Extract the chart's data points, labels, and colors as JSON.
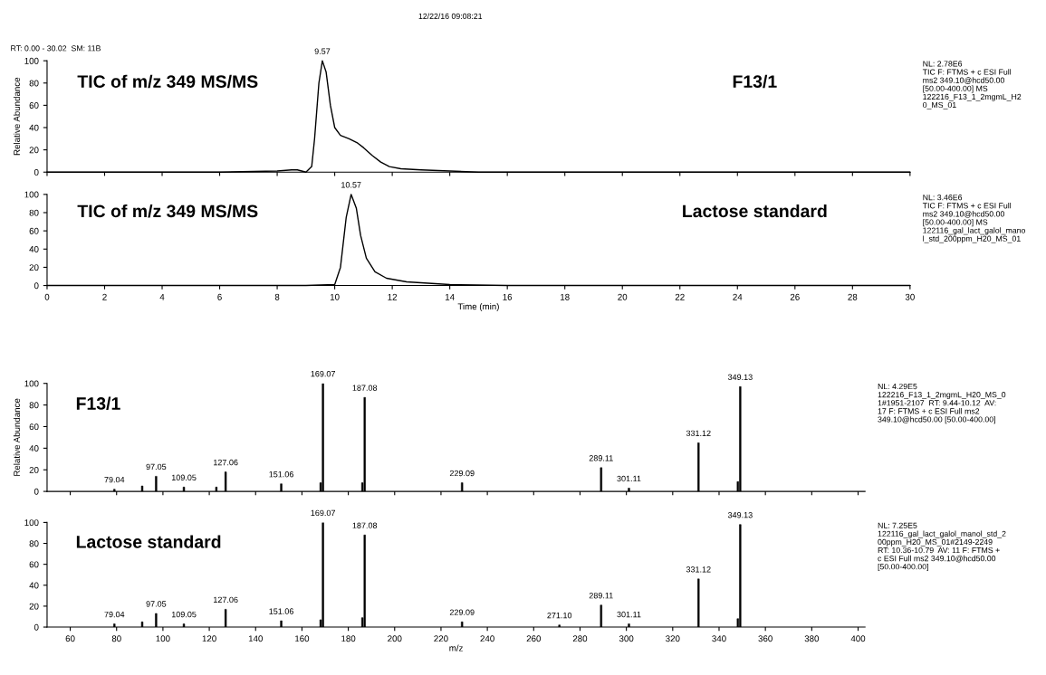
{
  "chart_data": [
    {
      "type": "line",
      "title": "TIC of m/z 349 MS/MS",
      "subtitle": "F13/1",
      "ylabel": "Relative Abundance",
      "tick_labels": "y",
      "xlim": [
        0,
        30
      ],
      "xticks": [
        0,
        2,
        4,
        6,
        8,
        10,
        12,
        14,
        16,
        18,
        20,
        22,
        24,
        26,
        28,
        30
      ],
      "ylim": [
        0,
        100
      ],
      "yticks": [
        0,
        20,
        40,
        60,
        80,
        100
      ],
      "grid": false,
      "legend": false,
      "series": [
        {
          "color": "#000000",
          "x": [
            0,
            2,
            4,
            6,
            8,
            8.5,
            8.7,
            9.0,
            9.2,
            9.3,
            9.45,
            9.57,
            9.7,
            9.85,
            10.0,
            10.2,
            10.5,
            10.8,
            11.0,
            11.3,
            11.6,
            11.9,
            12.3,
            13,
            14,
            15,
            20,
            25,
            30
          ],
          "values": [
            0,
            0,
            0,
            0,
            1,
            2,
            2,
            0,
            5,
            30,
            80,
            100,
            90,
            60,
            40,
            33,
            30,
            26,
            22,
            15,
            9,
            5,
            3,
            2,
            1,
            0,
            0,
            0,
            0
          ]
        }
      ],
      "annotations": [
        "NL: 2.78E6\nTIC F: FTMS + c ESI Full\nms2 349.10@hcd50.00\n[50.00-400.00] MS\n122216_F13_1_2mgmL_H2\n0_MS_01",
        "RT: 0.00 - 30.02  SM: 11B",
        "12/22/16 09:08:21",
        {
          "text": "9.57",
          "x": 9.57,
          "y": 100
        }
      ]
    },
    {
      "type": "line",
      "title": "TIC of m/z 349 MS/MS",
      "subtitle": "Lactose standard",
      "xlabel": "Time (min)",
      "xlim": [
        0,
        30
      ],
      "xticks": [
        0,
        2,
        4,
        6,
        8,
        10,
        12,
        14,
        16,
        18,
        20,
        22,
        24,
        26,
        28,
        30
      ],
      "ylim": [
        0,
        100
      ],
      "yticks": [
        0,
        20,
        40,
        60,
        80,
        100
      ],
      "grid": false,
      "legend": false,
      "series": [
        {
          "color": "#000000",
          "x": [
            0,
            2,
            4,
            6,
            8,
            9,
            10.0,
            10.2,
            10.4,
            10.57,
            10.75,
            10.9,
            11.1,
            11.4,
            11.8,
            12.5,
            13.5,
            14,
            16,
            20,
            25,
            30
          ],
          "values": [
            0,
            0,
            0,
            0,
            0,
            0,
            1,
            20,
            75,
            100,
            85,
            55,
            30,
            15,
            8,
            4,
            2,
            1,
            0,
            0,
            0,
            0
          ]
        }
      ],
      "annotations": [
        "NL: 3.46E6\nTIC F: FTMS + c ESI Full\nms2 349.10@hcd50.00\n[50.00-400.00] MS\n122116_gal_lact_galol_mano\nl_std_200ppm_H20_MS_01",
        {
          "text": "10.57",
          "x": 10.57,
          "y": 100
        }
      ]
    },
    {
      "type": "bar",
      "title": "F13/1",
      "ylabel": "Relative Abundance",
      "tick_labels": "y",
      "xlim": [
        50,
        403
      ],
      "xticks": [
        60,
        80,
        100,
        120,
        140,
        160,
        180,
        200,
        220,
        240,
        260,
        280,
        300,
        320,
        340,
        360,
        380,
        400
      ],
      "ylim": [
        0,
        100
      ],
      "yticks": [
        0,
        20,
        40,
        60,
        80,
        100
      ],
      "grid": false,
      "legend": false,
      "series": [
        {
          "color": "#000000",
          "x": [
            79.04,
            91.05,
            97.05,
            109.05,
            123.05,
            127.06,
            151.06,
            168.07,
            169.07,
            186.07,
            187.08,
            229.09,
            289.11,
            301.11,
            331.12,
            348.12,
            349.13
          ],
          "values": [
            2,
            5,
            14,
            4,
            4,
            18,
            7,
            8,
            100,
            8,
            87,
            8,
            22,
            3,
            45,
            9,
            97
          ]
        }
      ],
      "annotations": [
        "NL: 4.29E5\n122216_F13_1_2mgmL_H20_MS_0\n1#1951-2107  RT: 9.44-10.12  AV:\n17 F: FTMS + c ESI Full ms2\n349.10@hcd50.00 [50.00-400.00]",
        {
          "text": "79.04",
          "x": 79.04,
          "y": 2
        },
        {
          "text": "97.05",
          "x": 97.05,
          "y": 14
        },
        {
          "text": "109.05",
          "x": 109.05,
          "y": 4
        },
        {
          "text": "127.06",
          "x": 127.06,
          "y": 18
        },
        {
          "text": "151.06",
          "x": 151.06,
          "y": 7
        },
        {
          "text": "169.07",
          "x": 169.07,
          "y": 100
        },
        {
          "text": "187.08",
          "x": 187.08,
          "y": 87
        },
        {
          "text": "229.09",
          "x": 229.09,
          "y": 8
        },
        {
          "text": "289.11",
          "x": 289.11,
          "y": 22
        },
        {
          "text": "301.11",
          "x": 301.11,
          "y": 3
        },
        {
          "text": "331.12",
          "x": 331.12,
          "y": 45
        },
        {
          "text": "349.13",
          "x": 349.13,
          "y": 97
        }
      ]
    },
    {
      "type": "bar",
      "title": "Lactose standard",
      "xlabel": "m/z",
      "xlim": [
        50,
        403
      ],
      "xticks": [
        60,
        80,
        100,
        120,
        140,
        160,
        180,
        200,
        220,
        240,
        260,
        280,
        300,
        320,
        340,
        360,
        380,
        400
      ],
      "ylim": [
        0,
        100
      ],
      "yticks": [
        0,
        20,
        40,
        60,
        80,
        100
      ],
      "grid": false,
      "legend": false,
      "series": [
        {
          "color": "#000000",
          "x": [
            79.04,
            91.05,
            97.05,
            109.05,
            127.06,
            151.06,
            168.07,
            169.07,
            186.07,
            187.08,
            229.09,
            271.1,
            289.11,
            301.11,
            331.12,
            348.12,
            349.13
          ],
          "values": [
            3,
            5,
            13,
            3,
            17,
            6,
            7,
            100,
            9,
            88,
            5,
            2,
            21,
            3,
            46,
            8,
            98
          ]
        }
      ],
      "annotations": [
        "NL: 7.25E5\n122116_gal_lact_galol_manol_std_2\n00ppm_H20_MS_01#2149-2249\nRT: 10.36-10.79  AV: 11 F: FTMS +\nc ESI Full ms2 349.10@hcd50.00\n[50.00-400.00]",
        {
          "text": "79.04",
          "x": 79.04,
          "y": 3
        },
        {
          "text": "97.05",
          "x": 97.05,
          "y": 13
        },
        {
          "text": "109.05",
          "x": 109.05,
          "y": 3
        },
        {
          "text": "127.06",
          "x": 127.06,
          "y": 17
        },
        {
          "text": "151.06",
          "x": 151.06,
          "y": 6
        },
        {
          "text": "169.07",
          "x": 169.07,
          "y": 100
        },
        {
          "text": "187.08",
          "x": 187.08,
          "y": 88
        },
        {
          "text": "229.09",
          "x": 229.09,
          "y": 5
        },
        {
          "text": "271.10",
          "x": 271.1,
          "y": 2
        },
        {
          "text": "289.11",
          "x": 289.11,
          "y": 21
        },
        {
          "text": "301.11",
          "x": 301.11,
          "y": 3
        },
        {
          "text": "331.12",
          "x": 331.12,
          "y": 46
        },
        {
          "text": "349.13",
          "x": 349.13,
          "y": 98
        }
      ]
    }
  ]
}
